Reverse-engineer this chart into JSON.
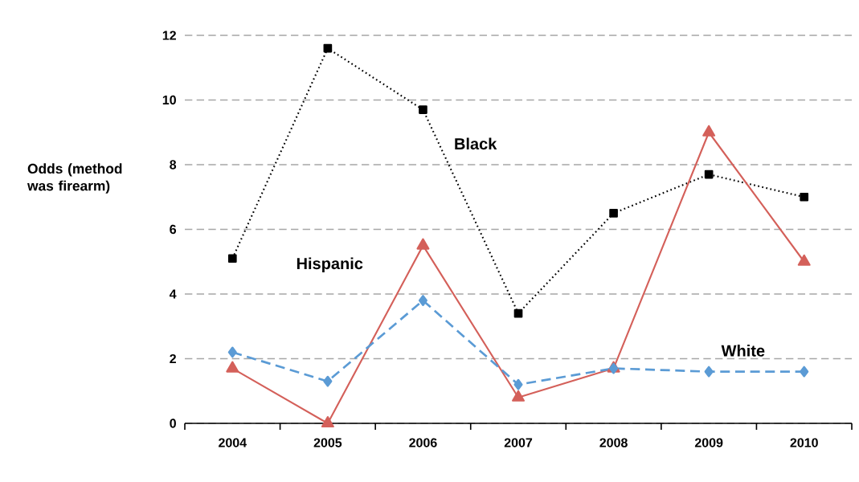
{
  "chart_data": {
    "type": "line",
    "ylabel": "Odds (method was firearm)",
    "categories": [
      "2004",
      "2005",
      "2006",
      "2007",
      "2008",
      "2009",
      "2010"
    ],
    "series": [
      {
        "name": "Black",
        "color": "#000000",
        "marker": "square",
        "line_style": "dotted",
        "values": [
          5.1,
          11.6,
          9.7,
          3.4,
          6.5,
          7.7,
          7.0
        ]
      },
      {
        "name": "Hispanic",
        "color": "#d4605a",
        "marker": "triangle",
        "line_style": "solid",
        "values": [
          1.7,
          0,
          5.5,
          0.8,
          1.7,
          9.0,
          5.0
        ]
      },
      {
        "name": "White",
        "color": "#5b9bd5",
        "marker": "diamond",
        "line_style": "dashed",
        "values": [
          2.2,
          1.3,
          3.8,
          1.2,
          1.7,
          1.6,
          1.6
        ]
      }
    ],
    "ylim": [
      0,
      12
    ],
    "yticks": [
      0,
      2,
      4,
      6,
      8,
      10,
      12
    ],
    "grid": "y",
    "legend": false
  }
}
